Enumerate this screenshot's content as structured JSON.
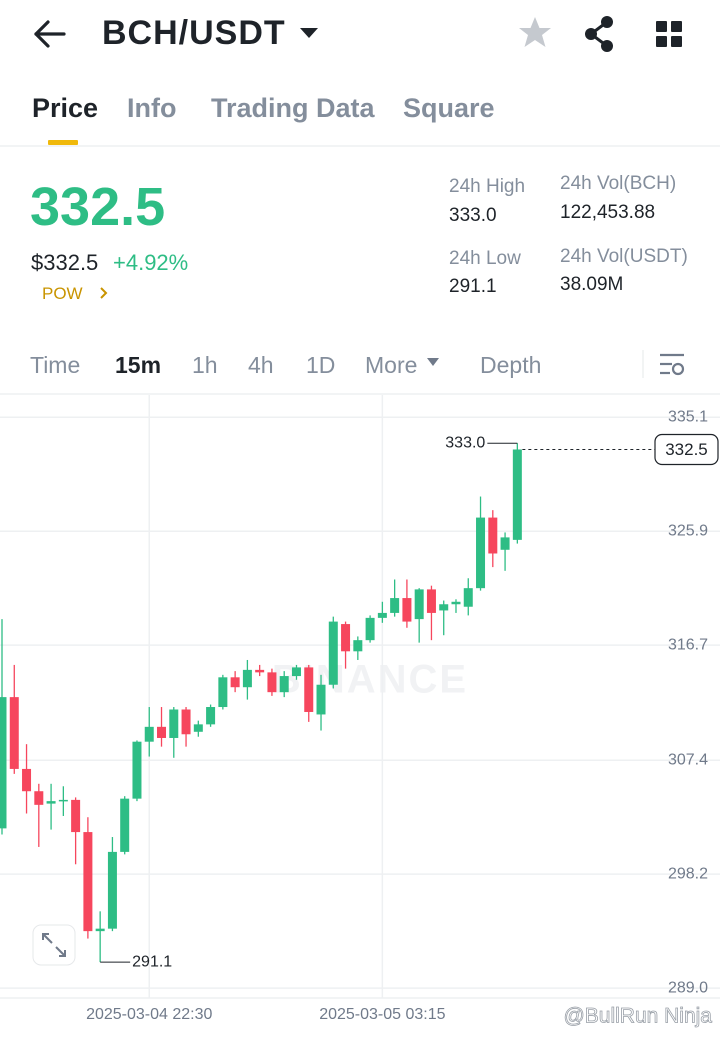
{
  "header": {
    "pair": "BCH/USDT"
  },
  "tabs": [
    "Price",
    "Info",
    "Trading Data",
    "Square"
  ],
  "ticker": {
    "price": "332.5",
    "price_usd": "$332.5",
    "change": "+4.92%",
    "tag": "POW",
    "stats": [
      {
        "label": "24h High",
        "value": "333.0"
      },
      {
        "label": "24h Vol(BCH)",
        "value": "122,453.88"
      },
      {
        "label": "24h Low",
        "value": "291.1"
      },
      {
        "label": "24h Vol(USDT)",
        "value": "38.09M"
      }
    ]
  },
  "intervals": [
    "Time",
    "15m",
    "1h",
    "4h",
    "1D",
    "More",
    "Depth"
  ],
  "watermark": "BINANCE",
  "credit": "@BullRun Ninja",
  "chart_data": {
    "type": "candlestick",
    "categories": [
      null,
      null,
      null,
      null,
      null,
      null,
      null,
      null,
      null,
      null,
      null,
      null,
      "2025-03-04 22:30",
      null,
      null,
      null,
      null,
      null,
      null,
      null,
      null,
      null,
      null,
      null,
      null,
      null,
      null,
      null,
      null,
      null,
      null,
      "2025-03-05 03:15",
      null,
      null,
      null,
      null,
      null,
      null,
      null,
      null,
      null,
      null,
      null
    ],
    "open": [
      301.9,
      312.5,
      306.7,
      304.9,
      303.9,
      304.1,
      304.2,
      301.6,
      293.6,
      293.8,
      300.0,
      304.3,
      308.9,
      310.1,
      309.2,
      311.5,
      309.7,
      310.3,
      311.7,
      314.1,
      313.3,
      314.7,
      314.5,
      312.9,
      314.2,
      314.9,
      311.1,
      313.5,
      318.4,
      316.2,
      317.1,
      318.9,
      319.3,
      320.5,
      318.8,
      321.2,
      319.5,
      320.0,
      319.8,
      321.3,
      327.0,
      324.4,
      325.2
    ],
    "high": [
      318.8,
      315.1,
      308.7,
      305.5,
      305.5,
      305.3,
      304.4,
      302.8,
      295.2,
      301.2,
      304.5,
      309.0,
      311.7,
      311.7,
      311.7,
      311.7,
      310.6,
      311.9,
      314.3,
      314.6,
      315.5,
      315.1,
      314.8,
      314.6,
      315.1,
      315.1,
      314.3,
      319.0,
      318.6,
      317.4,
      319.1,
      320.2,
      322.0,
      322.0,
      321.3,
      321.5,
      320.3,
      320.4,
      322.1,
      328.7,
      327.6,
      325.8,
      333.0
    ],
    "low": [
      301.4,
      306.3,
      303.1,
      300.4,
      301.8,
      302.9,
      299.0,
      293.0,
      291.1,
      293.6,
      299.8,
      304.1,
      307.7,
      308.5,
      307.6,
      308.5,
      309.3,
      310.1,
      311.5,
      312.9,
      312.3,
      314.2,
      312.6,
      312.5,
      313.9,
      310.5,
      309.8,
      313.2,
      314.8,
      315.5,
      316.9,
      318.5,
      319.0,
      318.1,
      316.9,
      317.1,
      317.5,
      319.3,
      319.1,
      321.1,
      323.0,
      322.7,
      324.9
    ],
    "close": [
      312.5,
      306.7,
      304.9,
      303.8,
      304.1,
      304.2,
      301.6,
      293.6,
      293.8,
      300.0,
      304.3,
      308.9,
      310.1,
      309.2,
      311.5,
      309.5,
      310.3,
      311.7,
      314.1,
      313.3,
      314.7,
      314.5,
      312.9,
      314.2,
      314.9,
      311.3,
      313.5,
      318.6,
      316.2,
      317.1,
      318.9,
      319.3,
      320.5,
      318.6,
      321.2,
      319.3,
      320.0,
      320.2,
      321.3,
      327.0,
      324.1,
      325.4,
      332.5
    ],
    "up_color": "#2ebd85",
    "down_color": "#f6465d",
    "ylim": [
      288.2,
      336.9
    ],
    "yticks": [
      335.1,
      325.9,
      316.7,
      307.4,
      298.2,
      {
        "value": 289,
        "label": "289.0"
      }
    ],
    "grid": true,
    "annotations": [
      {
        "value": 333,
        "label": "333.0"
      },
      {
        "value": 291.1,
        "label": "291.1"
      }
    ],
    "last_price": {
      "value": 332.5,
      "label": "332.5"
    }
  }
}
